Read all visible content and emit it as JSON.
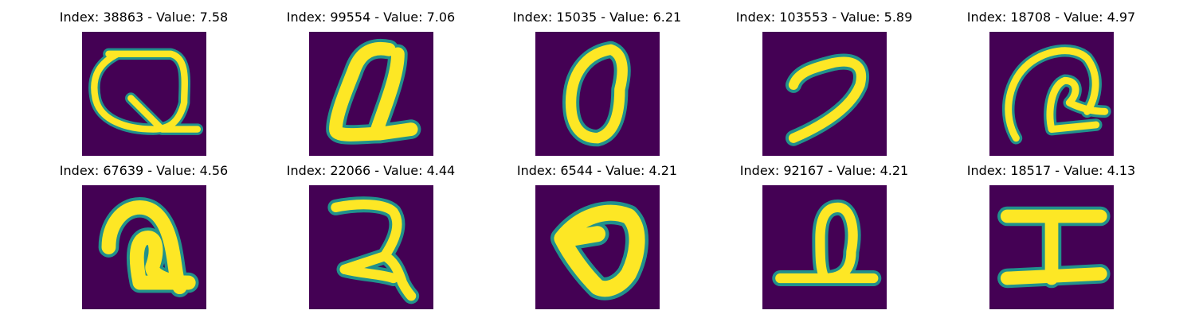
{
  "panels": [
    {
      "title": "Index: 38863 - Value: 7.58",
      "glyph": "q-loop"
    },
    {
      "title": "Index: 99554 - Value: 7.06",
      "glyph": "q-slanted"
    },
    {
      "title": "Index: 15035 - Value: 6.21",
      "glyph": "zero-oval"
    },
    {
      "title": "Index: 103553 - Value: 5.89",
      "glyph": "hook-stroke"
    },
    {
      "title": "Index: 18708 - Value: 4.97",
      "glyph": "curl-spiral"
    },
    {
      "title": "Index: 67639 - Value: 4.56",
      "glyph": "curl-spiral-bold"
    },
    {
      "title": "Index: 22066 - Value: 4.44",
      "glyph": "reversed-two"
    },
    {
      "title": "Index: 6544 - Value: 4.21",
      "glyph": "triangle-loop"
    },
    {
      "title": "Index: 92167 - Value: 4.21",
      "glyph": "loop-on-baseline"
    },
    {
      "title": "Index: 18517 - Value: 4.13",
      "glyph": "i-beam"
    }
  ],
  "colors": {
    "background": "#440154",
    "stroke": "#fde725",
    "edge": "#21918c"
  }
}
